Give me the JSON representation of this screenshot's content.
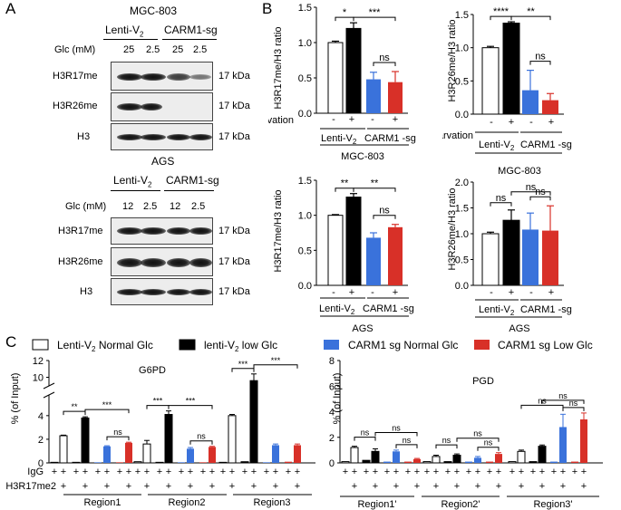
{
  "colors": {
    "white": "#ffffff",
    "black": "#000000",
    "blue": "#3a72db",
    "red": "#d83028"
  },
  "panel_a": {
    "label": "A",
    "section_top": {
      "cell_line": "MGC-803",
      "group1": "Lenti-V",
      "group1_sub": "2",
      "group2": "CARM1-sg",
      "glc_label": "Glc (mM)",
      "glc_values": [
        "25",
        "2.5",
        "25",
        "2.5"
      ],
      "blots": [
        {
          "name": "H3R17me",
          "kda": "17 kDa"
        },
        {
          "name": "H3R26me",
          "kda": "17 kDa"
        },
        {
          "name": "H3",
          "kda": "17 kDa"
        }
      ]
    },
    "section_bottom": {
      "cell_line": "AGS",
      "group1": "Lenti-V",
      "group1_sub": "2",
      "group2": "CARM1-sg",
      "glc_label": "Glc (mM)",
      "glc_values": [
        "12",
        "2.5",
        "12",
        "2.5"
      ],
      "blots": [
        {
          "name": "H3R17me",
          "kda": "17 kDa"
        },
        {
          "name": "H3R26me",
          "kda": "17 kDa"
        },
        {
          "name": "H3",
          "kda": "17 kDa"
        }
      ]
    }
  },
  "panel_b": {
    "label": "B",
    "starvation_label": "Starvation",
    "starvation_signs": [
      "-",
      "+",
      "-",
      "+"
    ],
    "group1": "Lenti-V",
    "group1_sub": "2",
    "group2": "CARM1 -sg"
  },
  "panel_c": {
    "label": "C",
    "legend": [
      {
        "prefix": "Lenti-V",
        "sub": "2",
        "suffix": " Normal Glc",
        "color": "#ffffff"
      },
      {
        "prefix": "lenti-V",
        "sub": "2",
        "suffix": " low Glc",
        "color": "#000000"
      },
      {
        "prefix": "CARM1 sg Normal Glc",
        "sub": "",
        "suffix": "",
        "color": "#3a72db"
      },
      {
        "prefix": "CARM1 sg Low Glc",
        "sub": "",
        "suffix": "",
        "color": "#d83028"
      }
    ],
    "row_labels": [
      "IgG",
      "H3R17me2"
    ],
    "igg_signs": [
      "+",
      "+",
      "+",
      "+",
      "+",
      "+",
      "+",
      "+"
    ],
    "ab_signs": [
      "+",
      "+",
      "+",
      "+"
    ]
  },
  "chart_data": [
    {
      "type": "bar",
      "id": "B1",
      "title": "",
      "cell_line": "MGC-803",
      "ylabel": "H3R17me/H3 ratio",
      "ylim": [
        0,
        1.5
      ],
      "yticks": [
        "0.0",
        "0.5",
        "1.0",
        "1.5"
      ],
      "categories": [
        "Lenti-V2 -",
        "Lenti-V2 +",
        "CARM1-sg -",
        "CARM1-sg +"
      ],
      "values": [
        1.0,
        1.2,
        0.48,
        0.44
      ],
      "errors": [
        0.02,
        0.08,
        0.1,
        0.15
      ],
      "annotations": [
        {
          "text": "*",
          "from": 0,
          "to": 1
        },
        {
          "text": "***",
          "from": 1,
          "to": 3
        },
        {
          "text": "ns",
          "from": 2,
          "to": 3
        }
      ]
    },
    {
      "type": "bar",
      "id": "B2",
      "title": "",
      "cell_line": "MGC-803",
      "ylabel": "H3R26me/H3 ratio",
      "ylim": [
        0,
        1.5
      ],
      "yticks": [
        "0.0",
        "0.5",
        "1.0",
        "1.5"
      ],
      "categories": [
        "Lenti-V2 -",
        "Lenti-V2 +",
        "CARM1-sg -",
        "CARM1-sg +"
      ],
      "values": [
        1.0,
        1.37,
        0.36,
        0.21
      ],
      "errors": [
        0.02,
        0.02,
        0.3,
        0.1
      ],
      "annotations": [
        {
          "text": "****",
          "from": 0,
          "to": 1
        },
        {
          "text": "**",
          "from": 1,
          "to": 3
        },
        {
          "text": "ns",
          "from": 2,
          "to": 3
        }
      ]
    },
    {
      "type": "bar",
      "id": "B3",
      "title": "",
      "cell_line": "AGS",
      "ylabel": "H3R17me/H3 ratio",
      "ylim": [
        0,
        1.5
      ],
      "yticks": [
        "0.0",
        "0.5",
        "1.0",
        "1.5"
      ],
      "categories": [
        "Lenti-V2 -",
        "Lenti-V2 +",
        "CARM1-sg -",
        "CARM1-sg +"
      ],
      "values": [
        1.0,
        1.26,
        0.68,
        0.83
      ],
      "errors": [
        0.01,
        0.05,
        0.07,
        0.04
      ],
      "annotations": [
        {
          "text": "**",
          "from": 0,
          "to": 1
        },
        {
          "text": "**",
          "from": 1,
          "to": 3
        },
        {
          "text": "ns",
          "from": 2,
          "to": 3
        }
      ]
    },
    {
      "type": "bar",
      "id": "B4",
      "title": "",
      "cell_line": "AGS",
      "ylabel": "H3R26me/H3 ratio",
      "ylim": [
        0,
        2.0
      ],
      "yticks": [
        "0.0",
        "0.5",
        "1.0",
        "1.5",
        "2.0"
      ],
      "categories": [
        "Lenti-V2 -",
        "Lenti-V2 +",
        "CARM1-sg -",
        "CARM1-sg +"
      ],
      "values": [
        1.0,
        1.26,
        1.08,
        1.06
      ],
      "errors": [
        0.03,
        0.2,
        0.32,
        0.48
      ],
      "annotations": [
        {
          "text": "ns",
          "from": 0,
          "to": 1
        },
        {
          "text": "ns",
          "from": 1,
          "to": 3
        },
        {
          "text": "ns",
          "from": 2,
          "to": 3
        }
      ]
    },
    {
      "type": "bar",
      "id": "C1",
      "title": "G6PD",
      "ylabel": "% (of Input)",
      "yticks": [
        "0",
        "2",
        "4",
        "10",
        "12"
      ],
      "axis_break": [
        5,
        8
      ],
      "regions": [
        "Region1",
        "Region2",
        "Region3"
      ],
      "series": [
        {
          "name": "Lenti-V2 Normal Glc",
          "igg": [
            0.05,
            0.1,
            0.05
          ],
          "ab": [
            2.3,
            1.6,
            4.0
          ],
          "ab_err": [
            0.05,
            0.3,
            0.1
          ]
        },
        {
          "name": "lenti-V2 low Glc",
          "igg": [
            0.05,
            0.05,
            0.1
          ],
          "ab": [
            3.8,
            4.1,
            9.6
          ],
          "ab_err": [
            0.1,
            0.3,
            0.8
          ]
        },
        {
          "name": "CARM1 sg Normal Glc",
          "igg": [
            0.05,
            0.05,
            0.05
          ],
          "ab": [
            1.4,
            1.2,
            1.5
          ],
          "ab_err": [
            0.05,
            0.1,
            0.1
          ]
        },
        {
          "name": "CARM1 sg Low Glc",
          "igg": [
            0.05,
            0.05,
            0.1
          ],
          "ab": [
            1.7,
            1.35,
            1.5
          ],
          "ab_err": [
            0.05,
            0.05,
            0.1
          ]
        }
      ],
      "annotations": [
        "**",
        "***",
        "ns",
        "***",
        "***",
        "ns",
        "***",
        "***"
      ]
    },
    {
      "type": "bar",
      "id": "C2",
      "title": "PGD",
      "ylabel": "% (of Input)",
      "ylim": [
        0,
        8
      ],
      "yticks": [
        "0",
        "2",
        "4",
        "6",
        "8"
      ],
      "regions": [
        "Region1'",
        "Region2'",
        "Region3'"
      ],
      "series": [
        {
          "name": "Lenti-V2 Normal Glc",
          "igg": [
            0.1,
            0.1,
            0.1
          ],
          "ab": [
            1.2,
            0.5,
            0.9
          ],
          "ab_err": [
            0.1,
            0.1,
            0.1
          ]
        },
        {
          "name": "lenti-V2 low Glc",
          "igg": [
            0.2,
            0.1,
            0.1
          ],
          "ab": [
            0.9,
            0.6,
            1.3
          ],
          "ab_err": [
            0.2,
            0.1,
            0.1
          ]
        },
        {
          "name": "CARM1 sg Normal Glc",
          "igg": [
            0.1,
            0.1,
            0.1
          ],
          "ab": [
            0.9,
            0.4,
            2.8
          ],
          "ab_err": [
            0.1,
            0.1,
            1.0
          ]
        },
        {
          "name": "CARM1 sg Low Glc",
          "igg": [
            0.1,
            0.1,
            0.1
          ],
          "ab": [
            0.3,
            0.7,
            3.4
          ],
          "ab_err": [
            0.05,
            0.1,
            0.5
          ]
        }
      ],
      "annotations": [
        "ns",
        "ns",
        "ns",
        "ns",
        "ns",
        "ns",
        "ns",
        "ns",
        "ns"
      ]
    }
  ]
}
